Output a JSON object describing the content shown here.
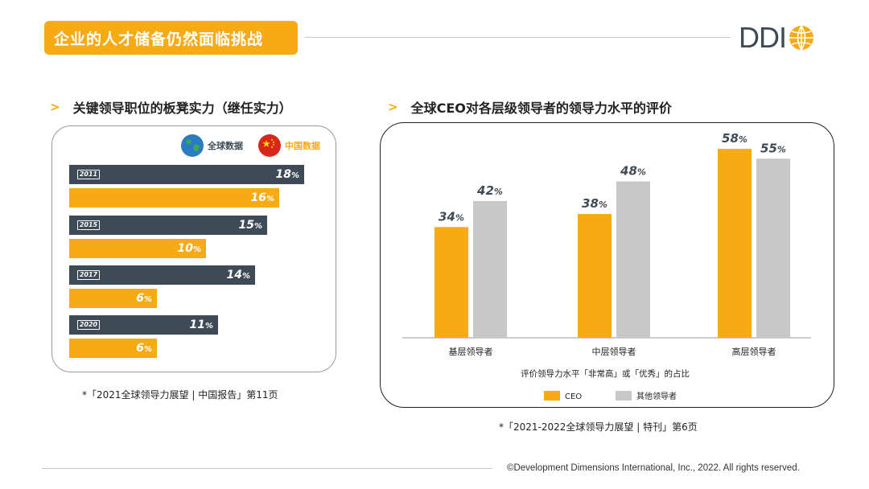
{
  "header": {
    "title": "企业的人才储备仍然面临挑战",
    "logo_text": "DDI"
  },
  "left": {
    "section_title": "关键领导职位的板凳实力（继任实力）",
    "legend_global": "全球数据",
    "legend_china": "中国数据",
    "footnote": "*「2021全球领导力展望 | 中国报告」第11页"
  },
  "right": {
    "section_title": "全球CEO对各层级领导者的领导力水平的评价",
    "x_caption": "评价领导力水平「非常高」或「优秀」的占比",
    "legend_ceo": "CEO",
    "legend_other": "其他领导者",
    "footnote": "*「2021-2022全球领导力展望 | 特刊」第6页"
  },
  "footer": {
    "copyright": "©Development Dimensions International, Inc., 2022. All rights reserved."
  },
  "colors": {
    "orange": "#f6ab15",
    "navy": "#3e4a55",
    "gray": "#c8c8c8"
  },
  "chart_data": [
    {
      "type": "bar",
      "orientation": "horizontal",
      "title": "关键领导职位的板凳实力（继任实力）",
      "categories": [
        "2011",
        "2015",
        "2017",
        "2020"
      ],
      "series": [
        {
          "name": "全球数据",
          "values": [
            18,
            15,
            14,
            11
          ]
        },
        {
          "name": "中国数据",
          "values": [
            16,
            10,
            6,
            6
          ]
        }
      ],
      "unit": "%"
    },
    {
      "type": "bar",
      "orientation": "vertical",
      "title": "全球CEO对各层级领导者的领导力水平的评价",
      "categories": [
        "基层领导者",
        "中层领导者",
        "高层领导者"
      ],
      "series": [
        {
          "name": "CEO",
          "values": [
            34,
            38,
            58
          ]
        },
        {
          "name": "其他领导者",
          "values": [
            42,
            48,
            55
          ]
        }
      ],
      "xlabel": "评价领导力水平「非常高」或「优秀」的占比",
      "unit": "%",
      "legend": "bottom"
    }
  ]
}
